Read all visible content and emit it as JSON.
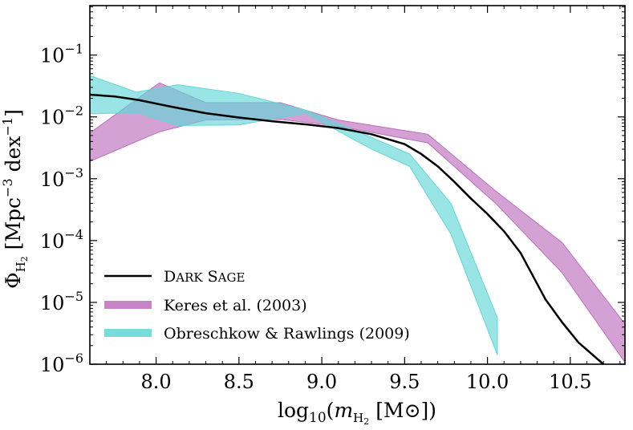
{
  "chart_data": {
    "type": "area",
    "xlabel": "log10(mH2 [M☉])",
    "ylabel": "ΦH2 [Mpc−3 dex−1]",
    "xlim": [
      7.6,
      10.83
    ],
    "ylim": [
      -6,
      -0.2
    ],
    "yscale": "log",
    "grid": false,
    "legend_position": "bottom-left",
    "xticks": [
      8.0,
      8.5,
      9.0,
      9.5,
      10.0,
      10.5
    ],
    "xtick_labels": [
      "8.0",
      "8.5",
      "9.0",
      "9.5",
      "10.0",
      "10.5"
    ],
    "ytick_exponents": [
      -1,
      -2,
      -3,
      -4,
      -5,
      -6
    ],
    "series": [
      {
        "name": "Dark Sage",
        "kind": "line",
        "color": "#000000",
        "x": [
          7.6,
          7.75,
          7.9,
          8.1,
          8.3,
          8.5,
          8.7,
          8.9,
          9.1,
          9.3,
          9.5,
          9.6,
          9.7,
          9.8,
          9.9,
          10.0,
          10.1,
          10.2,
          10.25,
          10.35,
          10.45,
          10.55,
          10.7
        ],
        "log_phi": [
          -1.64,
          -1.67,
          -1.73,
          -1.84,
          -1.94,
          -2.01,
          -2.07,
          -2.12,
          -2.18,
          -2.28,
          -2.44,
          -2.6,
          -2.8,
          -3.05,
          -3.32,
          -3.57,
          -3.85,
          -4.2,
          -4.45,
          -4.95,
          -5.32,
          -5.65,
          -6.0
        ]
      },
      {
        "name": "Keres et al. (2003)",
        "kind": "band",
        "color": "#bd6ebd",
        "x": [
          7.6,
          8.02,
          8.3,
          8.75,
          9.1,
          9.64,
          10.05,
          10.45,
          10.83
        ],
        "upper": [
          -2.26,
          -1.45,
          -1.77,
          -1.77,
          -2.05,
          -2.28,
          -3.2,
          -4.03,
          -5.35
        ],
        "lower": [
          -2.72,
          -2.24,
          -2.05,
          -2.04,
          -2.15,
          -2.42,
          -3.4,
          -4.52,
          -5.97
        ]
      },
      {
        "name": "Obreschkow & Rawlings (2009)",
        "kind": "band",
        "color": "#62d6d6",
        "x": [
          7.6,
          7.88,
          8.13,
          8.5,
          8.9,
          9.3,
          9.53,
          9.78,
          10.06
        ],
        "upper": [
          -1.33,
          -1.6,
          -1.48,
          -1.62,
          -1.89,
          -2.33,
          -2.6,
          -3.4,
          -5.25
        ],
        "lower": [
          -1.95,
          -1.93,
          -2.14,
          -2.13,
          -1.94,
          -2.52,
          -2.8,
          -3.9,
          -5.85
        ]
      }
    ]
  }
}
